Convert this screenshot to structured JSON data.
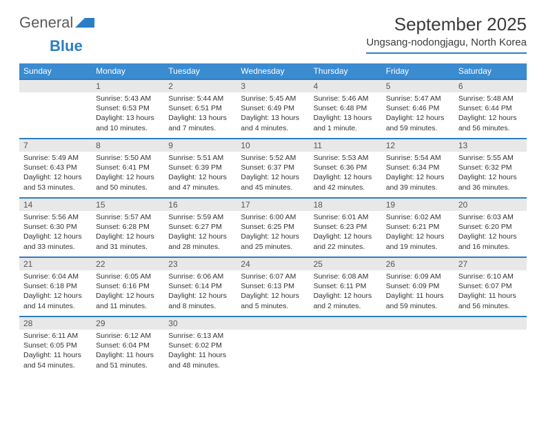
{
  "brand": {
    "word1": "General",
    "word2": "Blue"
  },
  "title": "September 2025",
  "location": "Ungsang-nodongjagu, North Korea",
  "colors": {
    "header_bg": "#3a8bd0",
    "divider": "#2b7dc4",
    "daynum_bg": "#e8e8e8",
    "text": "#333333",
    "title_text": "#3b3b3b"
  },
  "weekdays": [
    "Sunday",
    "Monday",
    "Tuesday",
    "Wednesday",
    "Thursday",
    "Friday",
    "Saturday"
  ],
  "weeks": [
    [
      {
        "day": "",
        "lines": []
      },
      {
        "day": "1",
        "lines": [
          "Sunrise: 5:43 AM",
          "Sunset: 6:53 PM",
          "Daylight: 13 hours",
          "and 10 minutes."
        ]
      },
      {
        "day": "2",
        "lines": [
          "Sunrise: 5:44 AM",
          "Sunset: 6:51 PM",
          "Daylight: 13 hours",
          "and 7 minutes."
        ]
      },
      {
        "day": "3",
        "lines": [
          "Sunrise: 5:45 AM",
          "Sunset: 6:49 PM",
          "Daylight: 13 hours",
          "and 4 minutes."
        ]
      },
      {
        "day": "4",
        "lines": [
          "Sunrise: 5:46 AM",
          "Sunset: 6:48 PM",
          "Daylight: 13 hours",
          "and 1 minute."
        ]
      },
      {
        "day": "5",
        "lines": [
          "Sunrise: 5:47 AM",
          "Sunset: 6:46 PM",
          "Daylight: 12 hours",
          "and 59 minutes."
        ]
      },
      {
        "day": "6",
        "lines": [
          "Sunrise: 5:48 AM",
          "Sunset: 6:44 PM",
          "Daylight: 12 hours",
          "and 56 minutes."
        ]
      }
    ],
    [
      {
        "day": "7",
        "lines": [
          "Sunrise: 5:49 AM",
          "Sunset: 6:43 PM",
          "Daylight: 12 hours",
          "and 53 minutes."
        ]
      },
      {
        "day": "8",
        "lines": [
          "Sunrise: 5:50 AM",
          "Sunset: 6:41 PM",
          "Daylight: 12 hours",
          "and 50 minutes."
        ]
      },
      {
        "day": "9",
        "lines": [
          "Sunrise: 5:51 AM",
          "Sunset: 6:39 PM",
          "Daylight: 12 hours",
          "and 47 minutes."
        ]
      },
      {
        "day": "10",
        "lines": [
          "Sunrise: 5:52 AM",
          "Sunset: 6:37 PM",
          "Daylight: 12 hours",
          "and 45 minutes."
        ]
      },
      {
        "day": "11",
        "lines": [
          "Sunrise: 5:53 AM",
          "Sunset: 6:36 PM",
          "Daylight: 12 hours",
          "and 42 minutes."
        ]
      },
      {
        "day": "12",
        "lines": [
          "Sunrise: 5:54 AM",
          "Sunset: 6:34 PM",
          "Daylight: 12 hours",
          "and 39 minutes."
        ]
      },
      {
        "day": "13",
        "lines": [
          "Sunrise: 5:55 AM",
          "Sunset: 6:32 PM",
          "Daylight: 12 hours",
          "and 36 minutes."
        ]
      }
    ],
    [
      {
        "day": "14",
        "lines": [
          "Sunrise: 5:56 AM",
          "Sunset: 6:30 PM",
          "Daylight: 12 hours",
          "and 33 minutes."
        ]
      },
      {
        "day": "15",
        "lines": [
          "Sunrise: 5:57 AM",
          "Sunset: 6:28 PM",
          "Daylight: 12 hours",
          "and 31 minutes."
        ]
      },
      {
        "day": "16",
        "lines": [
          "Sunrise: 5:59 AM",
          "Sunset: 6:27 PM",
          "Daylight: 12 hours",
          "and 28 minutes."
        ]
      },
      {
        "day": "17",
        "lines": [
          "Sunrise: 6:00 AM",
          "Sunset: 6:25 PM",
          "Daylight: 12 hours",
          "and 25 minutes."
        ]
      },
      {
        "day": "18",
        "lines": [
          "Sunrise: 6:01 AM",
          "Sunset: 6:23 PM",
          "Daylight: 12 hours",
          "and 22 minutes."
        ]
      },
      {
        "day": "19",
        "lines": [
          "Sunrise: 6:02 AM",
          "Sunset: 6:21 PM",
          "Daylight: 12 hours",
          "and 19 minutes."
        ]
      },
      {
        "day": "20",
        "lines": [
          "Sunrise: 6:03 AM",
          "Sunset: 6:20 PM",
          "Daylight: 12 hours",
          "and 16 minutes."
        ]
      }
    ],
    [
      {
        "day": "21",
        "lines": [
          "Sunrise: 6:04 AM",
          "Sunset: 6:18 PM",
          "Daylight: 12 hours",
          "and 14 minutes."
        ]
      },
      {
        "day": "22",
        "lines": [
          "Sunrise: 6:05 AM",
          "Sunset: 6:16 PM",
          "Daylight: 12 hours",
          "and 11 minutes."
        ]
      },
      {
        "day": "23",
        "lines": [
          "Sunrise: 6:06 AM",
          "Sunset: 6:14 PM",
          "Daylight: 12 hours",
          "and 8 minutes."
        ]
      },
      {
        "day": "24",
        "lines": [
          "Sunrise: 6:07 AM",
          "Sunset: 6:13 PM",
          "Daylight: 12 hours",
          "and 5 minutes."
        ]
      },
      {
        "day": "25",
        "lines": [
          "Sunrise: 6:08 AM",
          "Sunset: 6:11 PM",
          "Daylight: 12 hours",
          "and 2 minutes."
        ]
      },
      {
        "day": "26",
        "lines": [
          "Sunrise: 6:09 AM",
          "Sunset: 6:09 PM",
          "Daylight: 11 hours",
          "and 59 minutes."
        ]
      },
      {
        "day": "27",
        "lines": [
          "Sunrise: 6:10 AM",
          "Sunset: 6:07 PM",
          "Daylight: 11 hours",
          "and 56 minutes."
        ]
      }
    ],
    [
      {
        "day": "28",
        "lines": [
          "Sunrise: 6:11 AM",
          "Sunset: 6:05 PM",
          "Daylight: 11 hours",
          "and 54 minutes."
        ]
      },
      {
        "day": "29",
        "lines": [
          "Sunrise: 6:12 AM",
          "Sunset: 6:04 PM",
          "Daylight: 11 hours",
          "and 51 minutes."
        ]
      },
      {
        "day": "30",
        "lines": [
          "Sunrise: 6:13 AM",
          "Sunset: 6:02 PM",
          "Daylight: 11 hours",
          "and 48 minutes."
        ]
      },
      {
        "day": "",
        "lines": []
      },
      {
        "day": "",
        "lines": []
      },
      {
        "day": "",
        "lines": []
      },
      {
        "day": "",
        "lines": []
      }
    ]
  ]
}
